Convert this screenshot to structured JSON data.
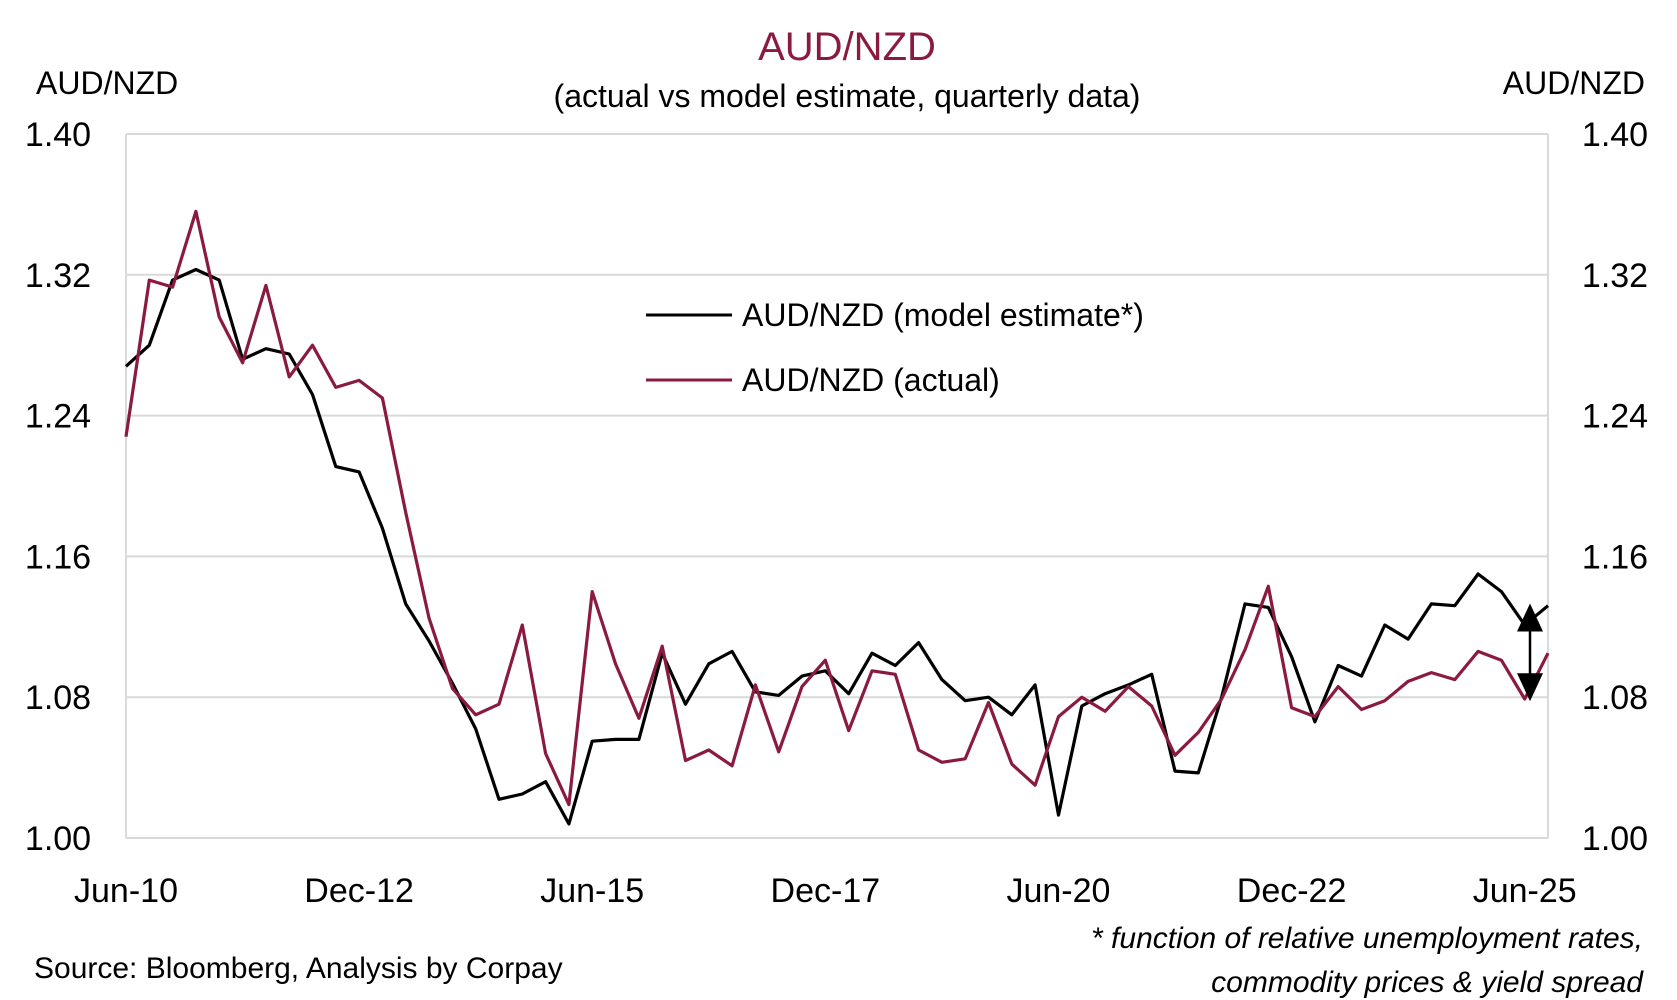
{
  "chart_data": {
    "type": "line",
    "title": "AUD/NZD",
    "subtitle": "(actual vs model estimate, quarterly data)",
    "ylabel_left": "AUD/NZD",
    "ylabel_right": "AUD/NZD",
    "ylim": [
      1.0,
      1.4
    ],
    "yticks": [
      "1.00",
      "1.08",
      "1.16",
      "1.24",
      "1.32",
      "1.40"
    ],
    "ytick_values": [
      1.0,
      1.08,
      1.16,
      1.24,
      1.32,
      1.4
    ],
    "xtick_labels": [
      "Jun-10",
      "Dec-12",
      "Jun-15",
      "Dec-17",
      "Jun-20",
      "Dec-22",
      "Jun-25"
    ],
    "xtick_index": [
      0,
      10,
      20,
      30,
      40,
      50,
      60
    ],
    "x_start": "Jun-10",
    "x_end": "Sep-25",
    "grid": "horizontal",
    "legend_position": "upper-center",
    "series": [
      {
        "name": "AUD/NZD (model estimate*)",
        "color": "#000000",
        "values": [
          1.268,
          1.28,
          1.317,
          1.323,
          1.317,
          1.272,
          1.278,
          1.275,
          1.252,
          1.211,
          1.208,
          1.176,
          1.133,
          1.112,
          1.088,
          1.062,
          1.022,
          1.025,
          1.032,
          1.008,
          1.055,
          1.056,
          1.056,
          1.105,
          1.076,
          1.099,
          1.106,
          1.083,
          1.081,
          1.092,
          1.095,
          1.082,
          1.105,
          1.098,
          1.111,
          1.09,
          1.078,
          1.08,
          1.07,
          1.087,
          1.013,
          1.075,
          1.082,
          1.087,
          1.093,
          1.038,
          1.037,
          1.08,
          1.133,
          1.131,
          1.103,
          1.066,
          1.098,
          1.092,
          1.121,
          1.113,
          1.133,
          1.132,
          1.15,
          1.14,
          1.121,
          1.132
        ]
      },
      {
        "name": "AUD/NZD (actual)",
        "color": "#8b1a3f",
        "values": [
          1.228,
          1.317,
          1.313,
          1.356,
          1.296,
          1.27,
          1.314,
          1.262,
          1.28,
          1.256,
          1.26,
          1.25,
          1.185,
          1.125,
          1.085,
          1.07,
          1.076,
          1.121,
          1.048,
          1.019,
          1.14,
          1.099,
          1.068,
          1.109,
          1.044,
          1.05,
          1.041,
          1.087,
          1.049,
          1.086,
          1.101,
          1.061,
          1.095,
          1.093,
          1.05,
          1.043,
          1.045,
          1.077,
          1.042,
          1.03,
          1.069,
          1.08,
          1.072,
          1.086,
          1.075,
          1.047,
          1.06,
          1.079,
          1.107,
          1.143,
          1.074,
          1.069,
          1.086,
          1.073,
          1.078,
          1.089,
          1.094,
          1.09,
          1.106,
          1.101,
          1.079,
          1.105
        ]
      }
    ],
    "annotation_arrow": {
      "from": 1.131,
      "to": 1.08
    }
  },
  "source": "Source: Bloomberg, Analysis by Corpay",
  "footnote_line1": "* function of relative unemployment rates,",
  "footnote_line2": "commodity prices & yield spread",
  "colors": {
    "accent": "#8b1a3f",
    "grid": "#d9d9d9"
  }
}
